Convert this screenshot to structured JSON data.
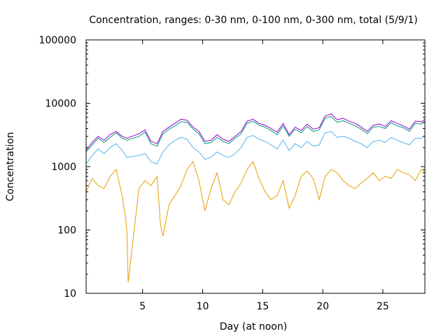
{
  "chart_data": {
    "type": "line",
    "title": "Concentration, ranges: 0-30 nm, 0-100 nm, 0-300 nm, total (5/9/1)",
    "xlabel": "Day (at noon)",
    "ylabel": "Concentration",
    "xlim": [
      0.3,
      28.5
    ],
    "ylim": [
      10,
      100000
    ],
    "yscale": "log",
    "x_ticks": [
      5,
      10,
      15,
      20,
      25
    ],
    "y_ticks": [
      {
        "value": 10,
        "label": "10"
      },
      {
        "value": 100,
        "label": "100"
      },
      {
        "value": 1000,
        "label": "1000"
      },
      {
        "value": 10000,
        "label": "10000"
      },
      {
        "value": 100000,
        "label": "100000"
      }
    ],
    "grid": false,
    "legend": "none",
    "series": [
      {
        "color": "#9400d3",
        "x": [
          0.3,
          0.8,
          1.3,
          1.8,
          2.3,
          2.8,
          3.3,
          3.7,
          4.7,
          5.2,
          5.7,
          6.2,
          6.7,
          7.2,
          7.7,
          8.2,
          8.7,
          9.2,
          9.7,
          10.2,
          10.7,
          11.2,
          11.7,
          12.2,
          12.7,
          13.2,
          13.7,
          14.2,
          14.7,
          15.2,
          15.7,
          16.2,
          16.7,
          17.2,
          17.7,
          18.2,
          18.7,
          19.2,
          19.7,
          20.2,
          20.7,
          21.2,
          21.7,
          22.2,
          22.7,
          23.2,
          23.7,
          24.2,
          24.7,
          25.2,
          25.7,
          26.2,
          26.7,
          27.2,
          27.7,
          28.2,
          28.5
        ],
        "y": [
          1800,
          2400,
          3000,
          2600,
          3200,
          3600,
          3000,
          2800,
          3300,
          3800,
          2500,
          2300,
          3600,
          4200,
          4800,
          5600,
          5400,
          4200,
          3600,
          2500,
          2600,
          3200,
          2700,
          2500,
          3000,
          3600,
          5200,
          5600,
          4800,
          4500,
          4000,
          3500,
          4800,
          3200,
          4200,
          3700,
          4700,
          3900,
          4100,
          6300,
          6800,
          5500,
          5800,
          5200,
          4800,
          4200,
          3600,
          4500,
          4700,
          4300,
          5300,
          4800,
          4400,
          3900,
          5200,
          5100,
          5600
        ]
      },
      {
        "color": "#009e73",
        "x": [
          0.3,
          0.8,
          1.3,
          1.8,
          2.3,
          2.8,
          3.3,
          3.7,
          4.7,
          5.2,
          5.7,
          6.2,
          6.7,
          7.2,
          7.7,
          8.2,
          8.7,
          9.2,
          9.7,
          10.2,
          10.7,
          11.2,
          11.7,
          12.2,
          12.7,
          13.2,
          13.7,
          14.2,
          14.7,
          15.2,
          15.7,
          16.2,
          16.7,
          17.2,
          17.7,
          18.2,
          18.7,
          19.2,
          19.7,
          20.2,
          20.7,
          21.2,
          21.7,
          22.2,
          22.7,
          23.2,
          23.7,
          24.2,
          24.7,
          25.2,
          25.7,
          26.2,
          26.7,
          27.2,
          27.7,
          28.2,
          28.5
        ],
        "y": [
          1700,
          2200,
          2800,
          2400,
          2900,
          3400,
          2800,
          2600,
          3000,
          3500,
          2300,
          2100,
          3300,
          3900,
          4400,
          5100,
          5000,
          3900,
          3300,
          2300,
          2400,
          2900,
          2500,
          2300,
          2800,
          3300,
          4800,
          5200,
          4500,
          4200,
          3700,
          3200,
          4400,
          3000,
          3900,
          3400,
          4300,
          3600,
          3800,
          5800,
          6200,
          5000,
          5300,
          4800,
          4400,
          3900,
          3300,
          4200,
          4300,
          4000,
          4900,
          4400,
          4100,
          3600,
          4800,
          4700,
          5200
        ]
      },
      {
        "color": "#56b4e9",
        "x": [
          0.3,
          0.8,
          1.3,
          1.8,
          2.3,
          2.8,
          3.3,
          3.7,
          4.7,
          5.2,
          5.7,
          6.2,
          6.7,
          7.2,
          7.7,
          8.2,
          8.7,
          9.2,
          9.7,
          10.2,
          10.7,
          11.2,
          11.7,
          12.2,
          12.7,
          13.2,
          13.7,
          14.2,
          14.7,
          15.2,
          15.7,
          16.2,
          16.7,
          17.2,
          17.7,
          18.2,
          18.7,
          19.2,
          19.7,
          20.2,
          20.7,
          21.2,
          21.7,
          22.2,
          22.7,
          23.2,
          23.7,
          24.2,
          24.7,
          25.2,
          25.7,
          26.2,
          26.7,
          27.2,
          27.7,
          28.2,
          28.5
        ],
        "y": [
          1100,
          1500,
          1900,
          1600,
          2000,
          2300,
          1800,
          1400,
          1500,
          1600,
          1200,
          1100,
          1700,
          2200,
          2600,
          2900,
          2700,
          2000,
          1700,
          1300,
          1400,
          1700,
          1500,
          1400,
          1600,
          2000,
          2900,
          3100,
          2700,
          2500,
          2200,
          1900,
          2600,
          1800,
          2300,
          2000,
          2500,
          2100,
          2200,
          3400,
          3600,
          2900,
          3000,
          2800,
          2500,
          2300,
          2000,
          2500,
          2600,
          2400,
          2900,
          2600,
          2400,
          2200,
          2800,
          2800,
          3100
        ]
      },
      {
        "color": "#e69f00",
        "x": [
          0.3,
          0.8,
          1.3,
          1.8,
          2.3,
          2.8,
          3.3,
          3.6,
          3.7,
          3.8,
          4.7,
          5.2,
          5.7,
          6.2,
          6.5,
          6.7,
          7.2,
          7.7,
          8.2,
          8.7,
          9.2,
          9.7,
          10.2,
          10.7,
          11.2,
          11.7,
          12.2,
          12.7,
          13.2,
          13.7,
          14.2,
          14.7,
          15.2,
          15.7,
          16.2,
          16.7,
          17.2,
          17.7,
          18.2,
          18.7,
          19.2,
          19.7,
          20.2,
          20.7,
          21.2,
          21.7,
          22.2,
          22.7,
          23.2,
          23.7,
          24.2,
          24.7,
          25.2,
          25.7,
          26.2,
          26.7,
          27.2,
          27.7,
          28.2,
          28.5
        ],
        "y": [
          400,
          650,
          500,
          450,
          700,
          900,
          350,
          150,
          90,
          15,
          450,
          600,
          500,
          700,
          120,
          80,
          250,
          350,
          500,
          900,
          1200,
          600,
          200,
          450,
          800,
          300,
          250,
          400,
          550,
          900,
          1200,
          650,
          400,
          300,
          350,
          600,
          220,
          350,
          700,
          850,
          650,
          300,
          700,
          900,
          800,
          600,
          500,
          450,
          550,
          650,
          800,
          600,
          700,
          650,
          900,
          800,
          750,
          600,
          900,
          800
        ]
      }
    ]
  }
}
